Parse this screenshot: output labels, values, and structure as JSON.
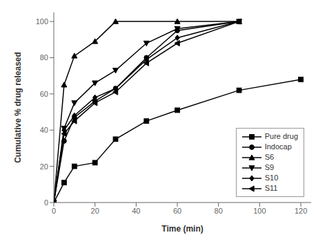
{
  "chart_data": {
    "type": "line",
    "xlabel": "Time (min)",
    "ylabel": "Cumulative % drug released",
    "xlim": [
      0,
      125
    ],
    "ylim": [
      0,
      105
    ],
    "xticks": [
      0,
      20,
      40,
      60,
      80,
      100,
      120
    ],
    "yticks": [
      0,
      20,
      40,
      60,
      80,
      100
    ],
    "legend": "lower right",
    "series": [
      {
        "name": "Pure drug",
        "marker": "square",
        "color": "#000000",
        "x": [
          0,
          5,
          10,
          20,
          30,
          45,
          60,
          90,
          120
        ],
        "values": [
          0,
          11,
          20,
          22,
          35,
          45,
          51,
          62,
          68
        ]
      },
      {
        "name": "Indocap",
        "marker": "circle",
        "color": "#000000",
        "x": [
          0,
          5,
          10,
          20,
          30,
          45,
          60,
          90
        ],
        "values": [
          0,
          34,
          47,
          56,
          63,
          80,
          95,
          100
        ]
      },
      {
        "name": "S6",
        "marker": "triangle-up",
        "color": "#000000",
        "x": [
          0,
          5,
          10,
          20,
          30,
          60,
          90
        ],
        "values": [
          0,
          65,
          81,
          89,
          100,
          100,
          100
        ]
      },
      {
        "name": "S9",
        "marker": "triangle-down",
        "color": "#000000",
        "x": [
          0,
          5,
          10,
          20,
          30,
          45,
          60,
          90
        ],
        "values": [
          0,
          41,
          55,
          66,
          73,
          88,
          96,
          100
        ]
      },
      {
        "name": "S10",
        "marker": "diamond",
        "color": "#000000",
        "x": [
          0,
          5,
          10,
          20,
          30,
          45,
          60,
          90
        ],
        "values": [
          0,
          40,
          48,
          58,
          63,
          79,
          91,
          100
        ]
      },
      {
        "name": "S11",
        "marker": "triangle-left",
        "color": "#000000",
        "x": [
          0,
          5,
          10,
          20,
          30,
          45,
          60,
          90
        ],
        "values": [
          0,
          38,
          45,
          55,
          61,
          77,
          88,
          100
        ]
      }
    ]
  }
}
